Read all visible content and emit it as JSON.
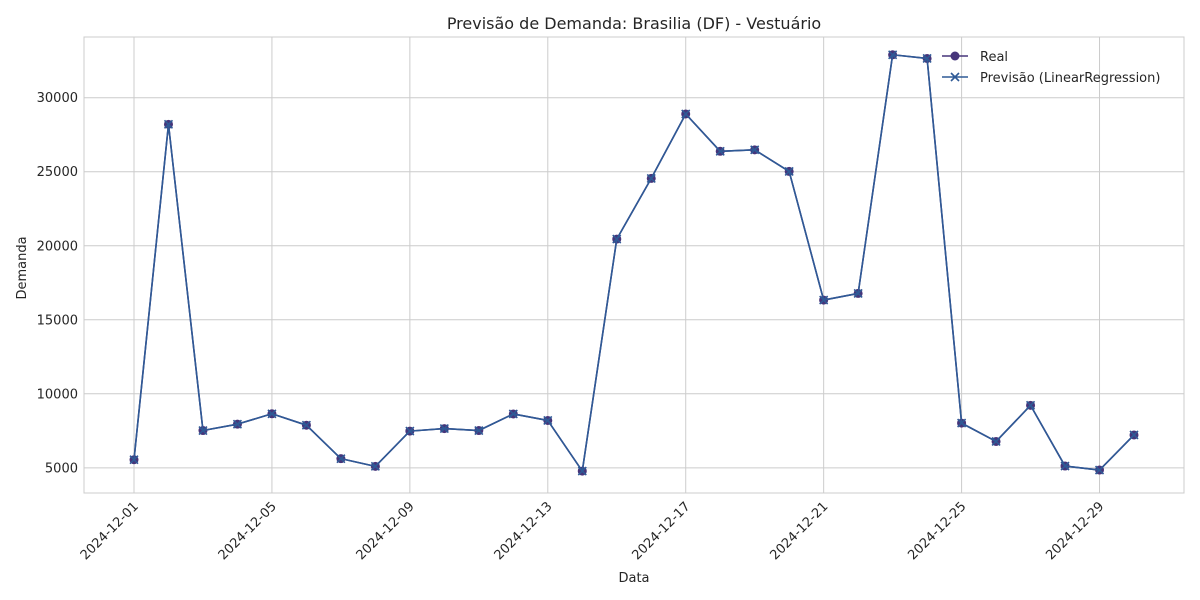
{
  "chart_data": {
    "type": "line",
    "title": "Previsão de Demanda: Brasilia (DF) - Vestuário",
    "xlabel": "Data",
    "ylabel": "Demanda",
    "x": [
      "2024-12-01",
      "2024-12-02",
      "2024-12-03",
      "2024-12-04",
      "2024-12-05",
      "2024-12-06",
      "2024-12-07",
      "2024-12-08",
      "2024-12-09",
      "2024-12-10",
      "2024-12-11",
      "2024-12-12",
      "2024-12-13",
      "2024-12-14",
      "2024-12-15",
      "2024-12-16",
      "2024-12-17",
      "2024-12-18",
      "2024-12-19",
      "2024-12-20",
      "2024-12-21",
      "2024-12-22",
      "2024-12-23",
      "2024-12-24",
      "2024-12-25",
      "2024-12-26",
      "2024-12-27",
      "2024-12-28",
      "2024-12-29",
      "2024-12-30"
    ],
    "x_ticks": [
      "2024-12-01",
      "2024-12-05",
      "2024-12-09",
      "2024-12-13",
      "2024-12-17",
      "2024-12-21",
      "2024-12-25",
      "2024-12-29"
    ],
    "y_ticks": [
      5000,
      10000,
      15000,
      20000,
      25000,
      30000
    ],
    "ylim": [
      3300,
      34100
    ],
    "xlim": [
      "2024-11-29.55",
      "2024-12-31.45"
    ],
    "grid": true,
    "legend_position": "top-right",
    "series": [
      {
        "name": "Real",
        "marker": "circle",
        "color": "#46357a",
        "values": [
          5550,
          28200,
          7520,
          7950,
          8650,
          7880,
          5620,
          5100,
          7480,
          7650,
          7520,
          8640,
          8200,
          4780,
          20450,
          24550,
          28900,
          26380,
          26480,
          25020,
          16330,
          16780,
          32900,
          32650,
          8020,
          6780,
          9220,
          5120,
          4850,
          7220
        ]
      },
      {
        "name": "Previsão (LinearRegression)",
        "marker": "x",
        "color": "#2f5a96",
        "values": [
          5550,
          28200,
          7520,
          7950,
          8650,
          7880,
          5620,
          5100,
          7480,
          7650,
          7520,
          8640,
          8200,
          4780,
          20450,
          24550,
          28900,
          26380,
          26480,
          25020,
          16330,
          16780,
          32900,
          32650,
          8020,
          6780,
          9220,
          5120,
          4850,
          7220
        ]
      }
    ]
  }
}
